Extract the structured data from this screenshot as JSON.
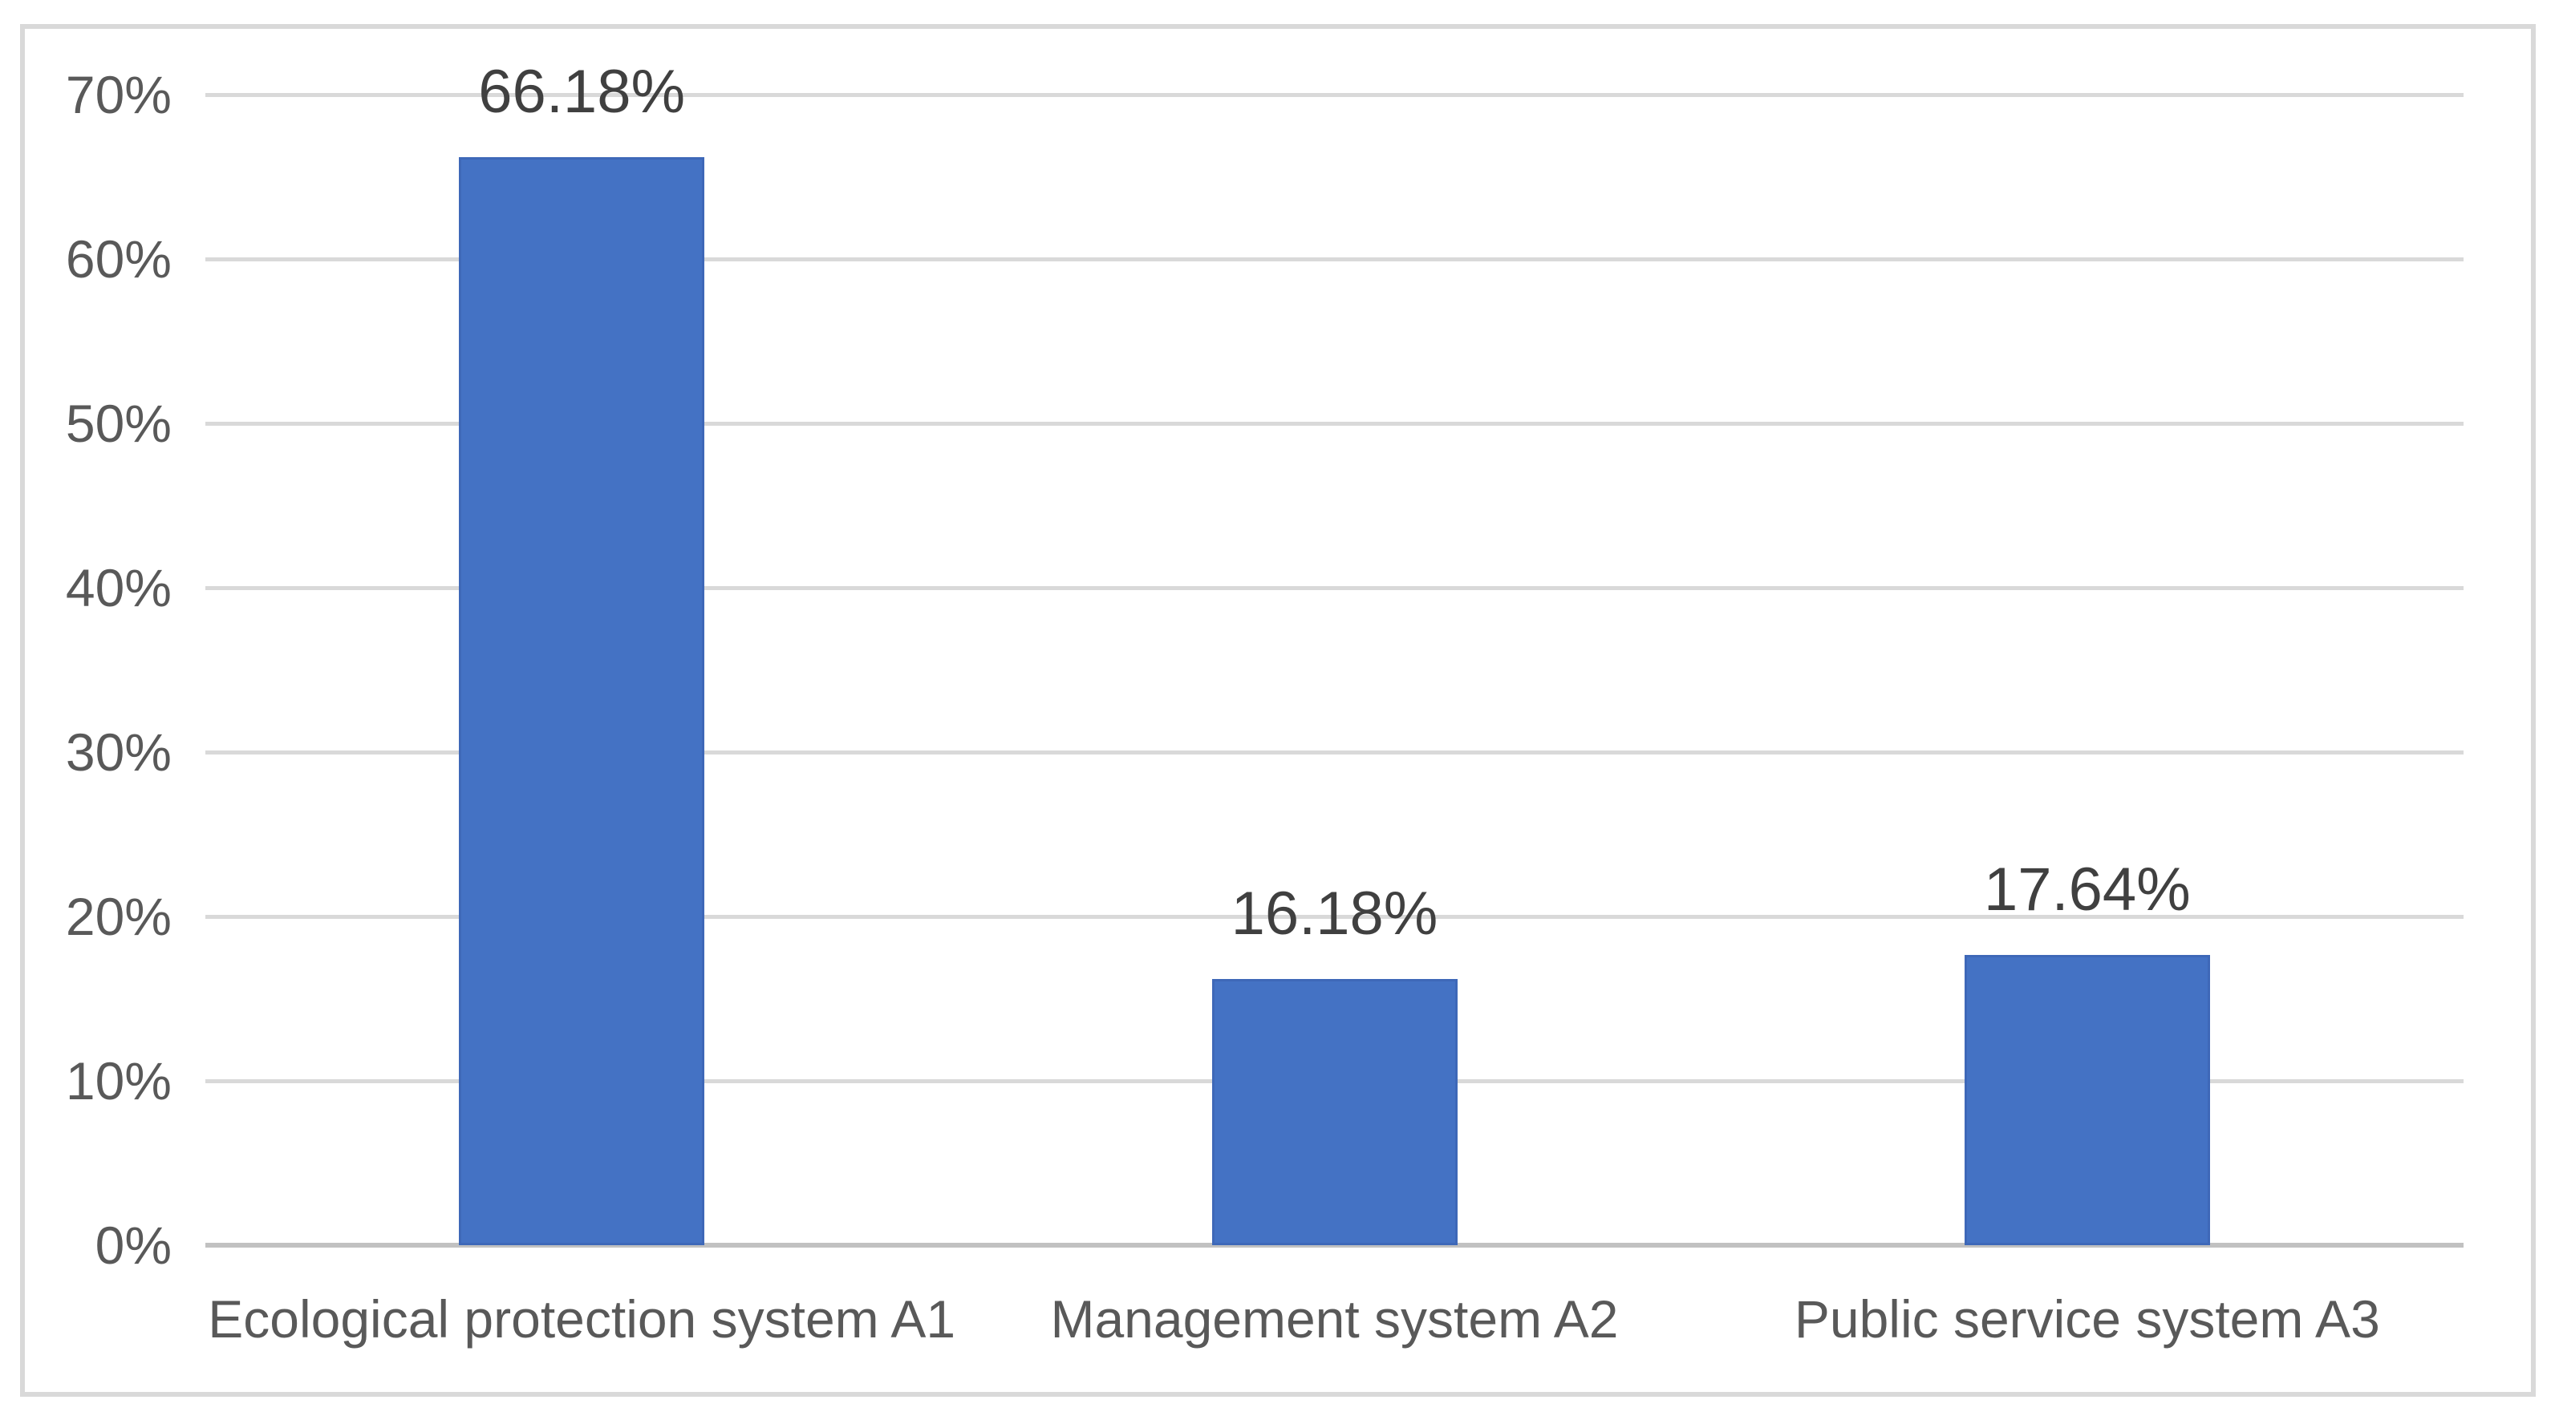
{
  "chart_data": {
    "type": "bar",
    "title": "",
    "xlabel": "",
    "ylabel": "",
    "categories": [
      "Ecological protection system A1",
      "Management system A2",
      "Public service system A3"
    ],
    "values": [
      66.18,
      16.18,
      17.64
    ],
    "data_labels": [
      "66.18%",
      "16.18%",
      "17.64%"
    ],
    "ylim": [
      0,
      70
    ],
    "ytick_values": [
      0,
      10,
      20,
      30,
      40,
      50,
      60,
      70
    ],
    "ytick_labels": [
      "0%",
      "10%",
      "20%",
      "30%",
      "40%",
      "50%",
      "60%",
      "70%"
    ],
    "grid": true,
    "legend": "none",
    "colors": {
      "bar_fill": "#4472C4",
      "bar_border": "#3E68B8",
      "gridline": "#D9D9D9",
      "axis_line": "#C1C1C1",
      "tick_label": "#595959",
      "category_label": "#595959",
      "data_label": "#404040",
      "chart_border": "#D9D9D9",
      "background": "#FFFFFF"
    }
  }
}
